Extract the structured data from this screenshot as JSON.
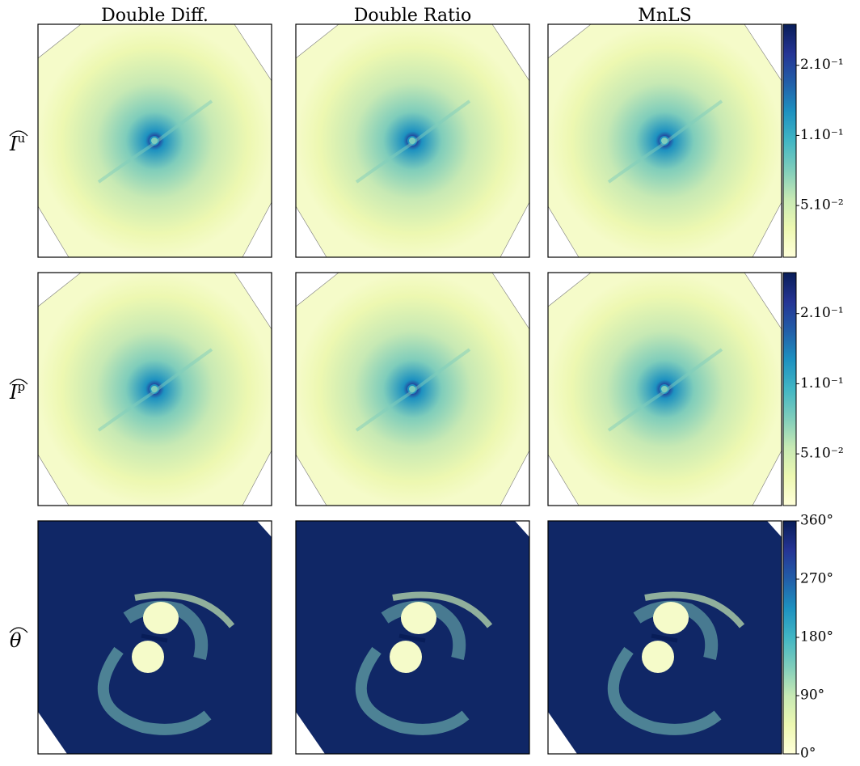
{
  "columns": [
    "Double Diff.",
    "Double Ratio",
    "MnLS"
  ],
  "rows": [
    {
      "symbol": "I",
      "sup": "u"
    },
    {
      "symbol": "I",
      "sup": "p"
    },
    {
      "symbol": "θ"
    }
  ],
  "colorbars": [
    {
      "scale": "log",
      "lim": [
        0.03,
        0.3
      ],
      "ticks": [
        {
          "value": 0.2,
          "label": "2.10⁻¹"
        },
        {
          "value": 0.1,
          "label": "1.10⁻¹"
        },
        {
          "value": 0.05,
          "label": "5.10⁻²"
        }
      ]
    },
    {
      "scale": "log",
      "lim": [
        0.03,
        0.3
      ],
      "ticks": [
        {
          "value": 0.2,
          "label": "2.10⁻¹"
        },
        {
          "value": 0.1,
          "label": "1.10⁻¹"
        },
        {
          "value": 0.05,
          "label": "5.10⁻²"
        }
      ]
    },
    {
      "scale": "linear",
      "lim": [
        0,
        360
      ],
      "ticks": [
        {
          "value": 0,
          "label": "0°"
        },
        {
          "value": 90,
          "label": "90°"
        },
        {
          "value": 180,
          "label": "180°"
        },
        {
          "value": 270,
          "label": "270°"
        },
        {
          "value": 360,
          "label": "360°"
        }
      ]
    }
  ]
}
